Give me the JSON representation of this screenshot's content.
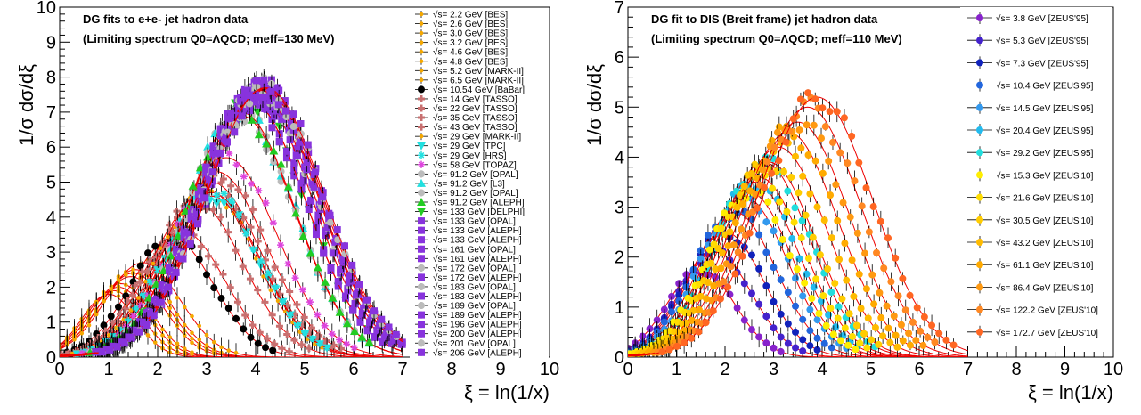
{
  "chart_data": [
    {
      "type": "scatter",
      "title": "DG fits to e+e- jet hadron data",
      "subtitle": "(Limiting spectrum Q0=ΛQCD; meff=130 MeV)",
      "xlabel": "ξ = ln(1/x)",
      "ylabel": "1/σ dσ/dξ",
      "xlim": [
        0,
        10
      ],
      "ylim": [
        0,
        10
      ],
      "x_ticks": [
        "0",
        "1",
        "2",
        "3",
        "4",
        "5",
        "6",
        "7",
        "8",
        "9",
        "10"
      ],
      "y_ticks": [
        "0",
        "1",
        "2",
        "3",
        "4",
        "5",
        "6",
        "7",
        "8",
        "9",
        "10"
      ],
      "legend_position": "right",
      "series": [
        {
          "name": "√s= 2.2 GeV [BES]",
          "color": "#f5a800",
          "marker": "dot",
          "peak_x": 1.0,
          "peak_y": 1.8,
          "width": 0.55
        },
        {
          "name": "√s= 2.6 GeV [BES]",
          "color": "#f5a800",
          "marker": "dot",
          "peak_x": 1.1,
          "peak_y": 1.9,
          "width": 0.58
        },
        {
          "name": "√s= 3.0 GeV [BES]",
          "color": "#f5a800",
          "marker": "dot",
          "peak_x": 1.2,
          "peak_y": 2.0,
          "width": 0.6
        },
        {
          "name": "√s= 3.2 GeV [BES]",
          "color": "#f5a800",
          "marker": "dot",
          "peak_x": 1.25,
          "peak_y": 2.1,
          "width": 0.62
        },
        {
          "name": "√s= 4.6 GeV [BES]",
          "color": "#f5a800",
          "marker": "dot",
          "peak_x": 1.45,
          "peak_y": 2.3,
          "width": 0.68
        },
        {
          "name": "√s= 4.8 GeV [BES]",
          "color": "#f5a800",
          "marker": "dot",
          "peak_x": 1.5,
          "peak_y": 2.4,
          "width": 0.7
        },
        {
          "name": "√s= 5.2 GeV [MARK-II]",
          "color": "#f5a800",
          "marker": "dot",
          "peak_x": 1.55,
          "peak_y": 2.5,
          "width": 0.72
        },
        {
          "name": "√s= 6.5 GeV [MARK-II]",
          "color": "#f5a800",
          "marker": "dot",
          "peak_x": 1.7,
          "peak_y": 2.7,
          "width": 0.76
        },
        {
          "name": "√s= 10.54 GeV [BaBar]",
          "color": "#000000",
          "marker": "circle",
          "peak_x": 2.3,
          "peak_y": 3.4,
          "width": 0.85
        },
        {
          "name": "√s= 14 GeV [TASSO]",
          "color": "#c87070",
          "marker": "cross",
          "peak_x": 2.5,
          "peak_y": 3.6,
          "width": 0.88
        },
        {
          "name": "√s= 22 GeV [TASSO]",
          "color": "#c87070",
          "marker": "cross",
          "peak_x": 2.8,
          "peak_y": 4.4,
          "width": 0.95
        },
        {
          "name": "√s= 35 GeV [TASSO]",
          "color": "#c87070",
          "marker": "cross",
          "peak_x": 3.1,
          "peak_y": 5.0,
          "width": 1.0
        },
        {
          "name": "√s= 43 GeV [TASSO]",
          "color": "#c87070",
          "marker": "cross",
          "peak_x": 3.2,
          "peak_y": 5.3,
          "width": 1.02
        },
        {
          "name": "√s= 29 GeV [MARK-II]",
          "color": "#f5a800",
          "marker": "dot",
          "peak_x": 3.0,
          "peak_y": 4.8,
          "width": 0.98
        },
        {
          "name": "√s= 29 GeV [TPC]",
          "color": "#22e0e0",
          "marker": "triangle-down",
          "peak_x": 3.1,
          "peak_y": 4.6,
          "width": 0.98
        },
        {
          "name": "√s= 29 GeV [HRS]",
          "color": "#22e0e0",
          "marker": "star",
          "peak_x": 3.1,
          "peak_y": 4.7,
          "width": 0.98
        },
        {
          "name": "√s= 58 GeV [TOPAZ]",
          "color": "#dd44dd",
          "marker": "star",
          "peak_x": 3.4,
          "peak_y": 5.7,
          "width": 1.05
        },
        {
          "name": "√s= 91.2 GeV [OPAL]",
          "color": "#bbbbbb",
          "marker": "circle",
          "peak_x": 3.7,
          "peak_y": 6.9,
          "width": 1.1
        },
        {
          "name": "√s= 91.2 GeV [L3]",
          "color": "#22e0e0",
          "marker": "triangle-up",
          "peak_x": 3.7,
          "peak_y": 7.0,
          "width": 1.1
        },
        {
          "name": "√s= 91.2 GeV [OPAL]",
          "color": "#bbbbbb",
          "marker": "circle",
          "peak_x": 3.7,
          "peak_y": 6.9,
          "width": 1.1
        },
        {
          "name": "√s= 91.2 GeV [ALEPH]",
          "color": "#22cc22",
          "marker": "triangle-up",
          "peak_x": 3.7,
          "peak_y": 7.0,
          "width": 1.1
        },
        {
          "name": "√s= 133 GeV [DELPHI]",
          "color": "#22cc22",
          "marker": "triangle-down",
          "peak_x": 3.9,
          "peak_y": 7.3,
          "width": 1.13
        },
        {
          "name": "√s= 133 GeV [OPAL]",
          "color": "#8833dd",
          "marker": "square",
          "peak_x": 3.9,
          "peak_y": 7.3,
          "width": 1.13
        },
        {
          "name": "√s= 133 GeV [ALEPH]",
          "color": "#8833dd",
          "marker": "square",
          "peak_x": 3.9,
          "peak_y": 7.3,
          "width": 1.13
        },
        {
          "name": "√s= 133 GeV [ALEPH]",
          "color": "#8833dd",
          "marker": "square",
          "peak_x": 3.9,
          "peak_y": 7.3,
          "width": 1.13
        },
        {
          "name": "√s= 161 GeV [OPAL]",
          "color": "#8833dd",
          "marker": "square",
          "peak_x": 4.0,
          "peak_y": 7.5,
          "width": 1.15
        },
        {
          "name": "√s= 161 GeV [ALEPH]",
          "color": "#8833dd",
          "marker": "square",
          "peak_x": 4.0,
          "peak_y": 7.5,
          "width": 1.15
        },
        {
          "name": "√s= 172 GeV [OPAL]",
          "color": "#bbbbbb",
          "marker": "circle",
          "peak_x": 4.05,
          "peak_y": 7.55,
          "width": 1.16
        },
        {
          "name": "√s= 172 GeV [ALEPH]",
          "color": "#8833dd",
          "marker": "square",
          "peak_x": 4.05,
          "peak_y": 7.55,
          "width": 1.16
        },
        {
          "name": "√s= 183 GeV [OPAL]",
          "color": "#bbbbbb",
          "marker": "circle",
          "peak_x": 4.1,
          "peak_y": 7.6,
          "width": 1.17
        },
        {
          "name": "√s= 183 GeV [ALEPH]",
          "color": "#8833dd",
          "marker": "square",
          "peak_x": 4.1,
          "peak_y": 7.6,
          "width": 1.17
        },
        {
          "name": "√s= 189 GeV [OPAL]",
          "color": "#bbbbbb",
          "marker": "circle",
          "peak_x": 4.12,
          "peak_y": 7.62,
          "width": 1.17
        },
        {
          "name": "√s= 189 GeV [ALEPH]",
          "color": "#8833dd",
          "marker": "square",
          "peak_x": 4.12,
          "peak_y": 7.62,
          "width": 1.17
        },
        {
          "name": "√s= 196 GeV [ALEPH]",
          "color": "#8833dd",
          "marker": "square",
          "peak_x": 4.15,
          "peak_y": 7.65,
          "width": 1.18
        },
        {
          "name": "√s= 200 GeV [ALEPH]",
          "color": "#8833dd",
          "marker": "square",
          "peak_x": 4.18,
          "peak_y": 7.68,
          "width": 1.18
        },
        {
          "name": "√s= 201 GeV [OPAL]",
          "color": "#bbbbbb",
          "marker": "circle",
          "peak_x": 4.18,
          "peak_y": 7.68,
          "width": 1.18
        },
        {
          "name": "√s= 206 GeV [ALEPH]",
          "color": "#8833dd",
          "marker": "square",
          "peak_x": 4.2,
          "peak_y": 7.7,
          "width": 1.19
        }
      ],
      "fit_color": "#ee0000"
    },
    {
      "type": "scatter",
      "title": "DG fit to DIS (Breit frame) jet hadron data",
      "subtitle": "(Limiting spectrum Q0=ΛQCD; meff=110 MeV)",
      "xlabel": "ξ = ln(1/x)",
      "ylabel": "1/σ dσ/dξ",
      "xlim": [
        0,
        10
      ],
      "ylim": [
        0,
        7
      ],
      "x_ticks": [
        "0",
        "1",
        "2",
        "3",
        "4",
        "5",
        "6",
        "7",
        "8",
        "9",
        "10"
      ],
      "y_ticks": [
        "0",
        "1",
        "2",
        "3",
        "4",
        "5",
        "6",
        "7"
      ],
      "legend_position": "right",
      "series": [
        {
          "name": "√s= 3.8 GeV [ZEUS'95]",
          "color": "#8822cc",
          "peak_x": 1.5,
          "peak_y": 1.75,
          "width": 0.7
        },
        {
          "name": "√s= 5.3 GeV [ZEUS'95]",
          "color": "#4422cc",
          "peak_x": 1.8,
          "peak_y": 2.1,
          "width": 0.75
        },
        {
          "name": "√s= 7.3 GeV [ZEUS'95]",
          "color": "#1122bb",
          "peak_x": 2.0,
          "peak_y": 2.5,
          "width": 0.8
        },
        {
          "name": "√s= 10.4 GeV [ZEUS'95]",
          "color": "#2266dd",
          "peak_x": 2.2,
          "peak_y": 2.9,
          "width": 0.85
        },
        {
          "name": "√s= 14.5 GeV [ZEUS'95]",
          "color": "#3399ee",
          "peak_x": 2.4,
          "peak_y": 3.2,
          "width": 0.88
        },
        {
          "name": "√s= 20.4 GeV [ZEUS'95]",
          "color": "#22bbee",
          "peak_x": 2.6,
          "peak_y": 3.5,
          "width": 0.9
        },
        {
          "name": "√s= 29.2 GeV [ZEUS'95]",
          "color": "#22dddd",
          "peak_x": 2.8,
          "peak_y": 3.9,
          "width": 0.95
        },
        {
          "name": "√s= 15.3 GeV [ZEUS'10]",
          "color": "#ffee00",
          "peak_x": 2.5,
          "peak_y": 3.3,
          "width": 0.88
        },
        {
          "name": "√s= 21.6 GeV [ZEUS'10]",
          "color": "#ffdd00",
          "peak_x": 2.7,
          "peak_y": 3.6,
          "width": 0.92
        },
        {
          "name": "√s= 30.5 GeV [ZEUS'10]",
          "color": "#ffcc00",
          "peak_x": 2.9,
          "peak_y": 3.9,
          "width": 0.96
        },
        {
          "name": "√s= 43.2 GeV [ZEUS'10]",
          "color": "#ffbb00",
          "peak_x": 3.1,
          "peak_y": 4.2,
          "width": 1.0
        },
        {
          "name": "√s= 61.1 GeV [ZEUS'10]",
          "color": "#ffaa00",
          "peak_x": 3.3,
          "peak_y": 4.5,
          "width": 1.03
        },
        {
          "name": "√s= 86.4 GeV [ZEUS'10]",
          "color": "#ff9911",
          "peak_x": 3.5,
          "peak_y": 4.7,
          "width": 1.06
        },
        {
          "name": "√s= 122.2 GeV [ZEUS'10]",
          "color": "#ff8822",
          "peak_x": 3.7,
          "peak_y": 5.0,
          "width": 1.1
        },
        {
          "name": "√s= 172.7 GeV [ZEUS'10]",
          "color": "#ff6622",
          "peak_x": 3.9,
          "peak_y": 5.2,
          "width": 1.14
        }
      ],
      "fit_color": "#ee0000"
    }
  ]
}
